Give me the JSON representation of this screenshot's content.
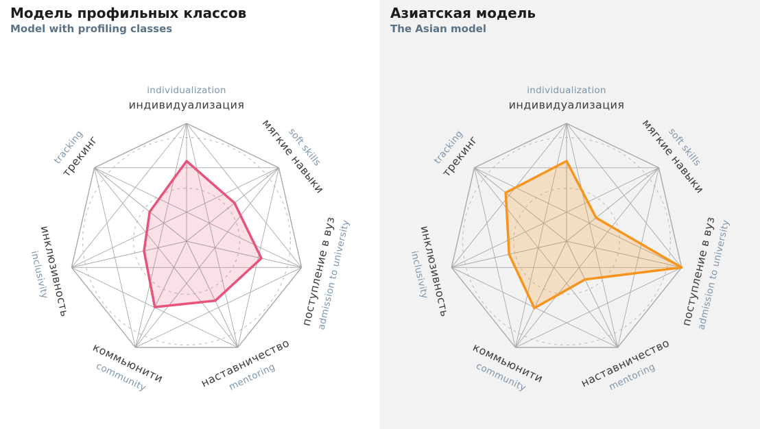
{
  "label_colors": {
    "ru": "#3c3c3c",
    "en": "#7e96ab",
    "title": "#1c1c1c",
    "subtitle": "#5b7286"
  },
  "chart_data": [
    {
      "type": "radar",
      "title": "Модель профильных классов",
      "subtitle": "Model with profiling classes",
      "axes": [
        {
          "ru": "индивидуализация",
          "en": "individualization"
        },
        {
          "ru": "мягкие навыки",
          "en": "soft skills"
        },
        {
          "ru": "поступление в вуз",
          "en": "admission to university"
        },
        {
          "ru": "наставничество",
          "en": "mentoring"
        },
        {
          "ru": "коммьюнити",
          "en": "community"
        },
        {
          "ru": "инклюзивность",
          "en": "inclusivity"
        },
        {
          "ru": "трекинг",
          "en": "tracking"
        }
      ],
      "values": [
        0.68,
        0.52,
        0.65,
        0.56,
        0.62,
        0.37,
        0.4
      ],
      "value_range": [
        0,
        1
      ],
      "stroke_color": "#e8537a",
      "fill_color": "rgba(232,83,122,0.18)",
      "panel_bg": "#ffffff",
      "grid": {
        "line_color": "#a8a8a8",
        "dashed_circle_color": "#c3c3c3",
        "dashed_radii": [
          0.45,
          0.88
        ]
      }
    },
    {
      "type": "radar",
      "title": "Азиатская модель",
      "subtitle": "The Asian model",
      "axes": [
        {
          "ru": "индивидуализация",
          "en": "individualization"
        },
        {
          "ru": "мягкие навыки",
          "en": "soft skills"
        },
        {
          "ru": "поступление в вуз",
          "en": "admission to university"
        },
        {
          "ru": "наставничество",
          "en": "mentoring"
        },
        {
          "ru": "коммьюнити",
          "en": "community"
        },
        {
          "ru": "инклюзивность",
          "en": "inclusivity"
        },
        {
          "ru": "трекинг",
          "en": "tracking"
        }
      ],
      "values": [
        0.68,
        0.32,
        1.0,
        0.36,
        0.63,
        0.5,
        0.66
      ],
      "value_range": [
        0,
        1
      ],
      "stroke_color": "#f7941d",
      "fill_color": "rgba(247,148,29,0.22)",
      "panel_bg": "#f2f2f2",
      "grid": {
        "line_color": "#a8a8a8",
        "dashed_circle_color": "#c3c3c3",
        "dashed_radii": [
          0.45,
          0.88
        ]
      }
    }
  ]
}
